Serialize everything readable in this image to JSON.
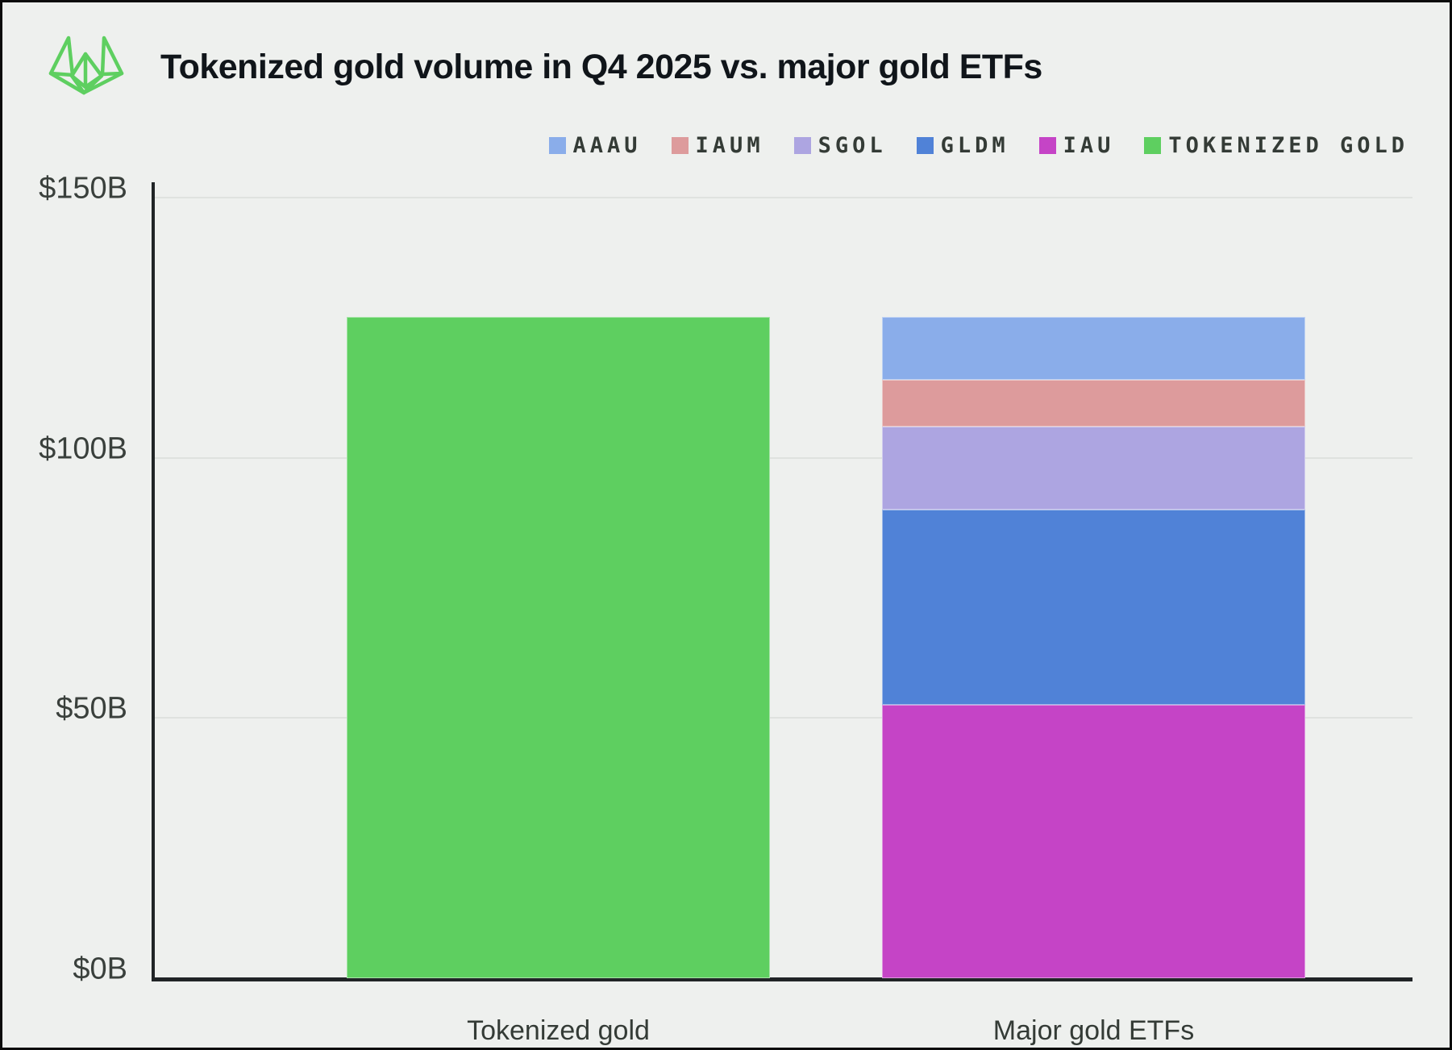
{
  "page": {
    "background_color": "#eef0ee",
    "border_color": "#0c0c0c",
    "logo_color": "#5ecf60"
  },
  "header": {
    "title": "Tokenized gold volume in Q4 2025 vs. major gold ETFs"
  },
  "chart_data": {
    "type": "bar",
    "stacked": true,
    "title": "Tokenized gold volume in Q4 2025 vs. major gold ETFs",
    "unit": "USD billions",
    "categories": [
      "Tokenized gold",
      "Major gold ETFs"
    ],
    "xlabel": "",
    "ylabel": "",
    "ylim": [
      0,
      150
    ],
    "yticks": [
      {
        "label": "$0B",
        "value": 0
      },
      {
        "label": "$50B",
        "value": 50
      },
      {
        "label": "$100B",
        "value": 100
      },
      {
        "label": "$150B",
        "value": 150
      }
    ],
    "grid": true,
    "legend_position": "top-right",
    "series": [
      {
        "name": "AAAU",
        "color": "#8aadea",
        "values": [
          0,
          12
        ]
      },
      {
        "name": "IAUM",
        "color": "#dd9b9c",
        "values": [
          0,
          9
        ]
      },
      {
        "name": "SGOL",
        "color": "#ada5e1",
        "values": [
          0,
          16
        ]
      },
      {
        "name": "GLDM",
        "color": "#5082d7",
        "values": [
          0,
          37.5
        ]
      },
      {
        "name": "IAU",
        "color": "#c544c6",
        "values": [
          0,
          52.5
        ]
      },
      {
        "name": "TOKENIZED GOLD",
        "color": "#5ecf60",
        "values": [
          127,
          0
        ]
      }
    ],
    "totals": {
      "Tokenized gold": 127,
      "Major gold ETFs": 127
    }
  }
}
